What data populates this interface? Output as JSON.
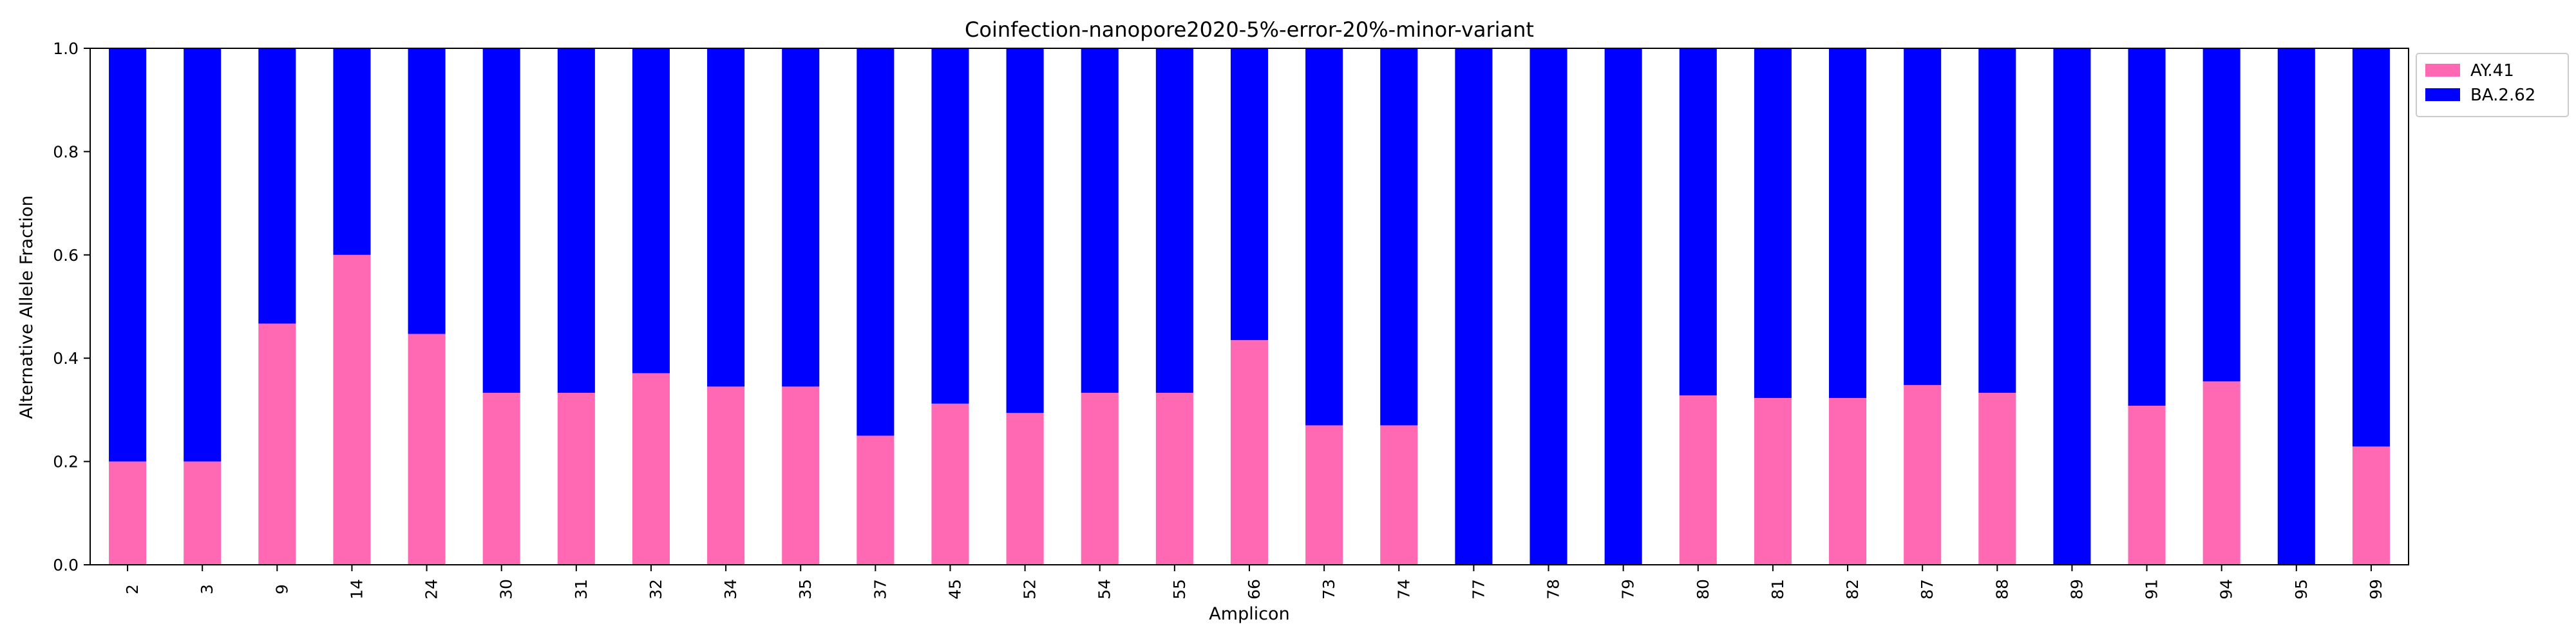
{
  "chart_data": {
    "type": "bar",
    "stacked": true,
    "title": "Coinfection-nanopore2020-5%-error-20%-minor-variant",
    "xlabel": "Amplicon",
    "ylabel": "Alternative Allele Fraction",
    "ylim": [
      0,
      1
    ],
    "yticks": [
      "0.0",
      "0.2",
      "0.4",
      "0.6",
      "0.8",
      "1.0"
    ],
    "grid": false,
    "legend_position": "top-right",
    "categories": [
      "2",
      "3",
      "9",
      "14",
      "24",
      "30",
      "31",
      "32",
      "34",
      "35",
      "37",
      "45",
      "52",
      "54",
      "55",
      "66",
      "73",
      "74",
      "77",
      "78",
      "79",
      "80",
      "81",
      "82",
      "87",
      "88",
      "89",
      "91",
      "94",
      "95",
      "99"
    ],
    "series": [
      {
        "name": "AY.41",
        "color": "#ff69b4",
        "values": [
          0.2,
          0.2,
          0.467,
          0.6,
          0.447,
          0.333,
          0.333,
          0.371,
          0.345,
          0.345,
          0.25,
          0.312,
          0.294,
          0.333,
          0.333,
          0.435,
          0.27,
          0.27,
          0,
          0,
          0,
          0.328,
          0.323,
          0.323,
          0.348,
          0.333,
          0,
          0.308,
          0.355,
          0,
          0.229
        ]
      },
      {
        "name": "BA.2.62",
        "color": "#0000ff",
        "values": [
          0.8,
          0.8,
          0.533,
          0.4,
          0.553,
          0.667,
          0.667,
          0.629,
          0.655,
          0.655,
          0.75,
          0.688,
          0.706,
          0.667,
          0.667,
          0.565,
          0.73,
          0.73,
          1,
          1,
          1,
          0.672,
          0.677,
          0.677,
          0.652,
          0.667,
          1,
          0.692,
          0.645,
          1,
          0.771
        ]
      }
    ]
  }
}
